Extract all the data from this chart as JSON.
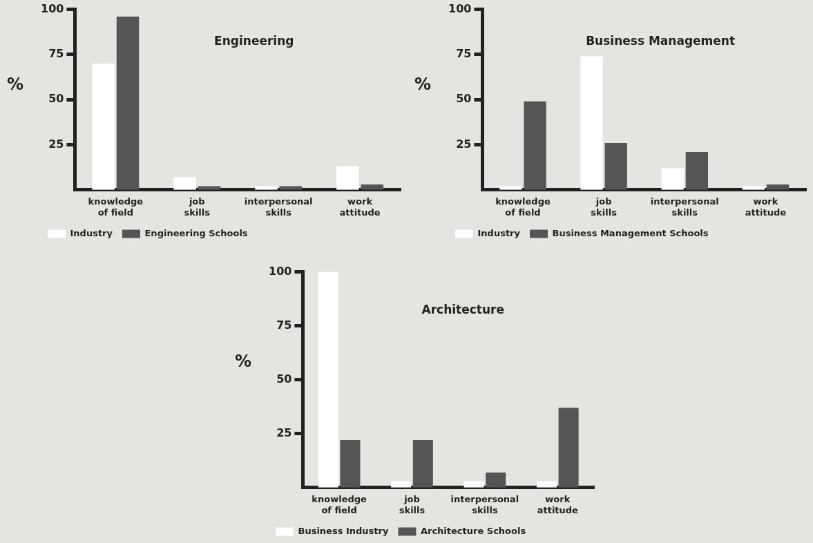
{
  "chart_data": [
    {
      "type": "bar",
      "title": "Engineering",
      "ylabel": "%",
      "categories": [
        "knowledge of field",
        "job skills",
        "interpersonal skills",
        "work attitude"
      ],
      "series": [
        {
          "name": "Industry",
          "color": "#ffffff",
          "values": [
            70,
            7,
            2,
            13
          ]
        },
        {
          "name": "Engineering Schools",
          "color": "#555555",
          "values": [
            96,
            2,
            2,
            3
          ]
        }
      ],
      "ylim": [
        0,
        100
      ],
      "yticks": [
        25,
        50,
        75,
        100
      ],
      "grid": false,
      "legend": "bottom"
    },
    {
      "type": "bar",
      "title": "Business Management",
      "ylabel": "%",
      "categories": [
        "knowledge of field",
        "job skills",
        "interpersonal skills",
        "work attitude"
      ],
      "series": [
        {
          "name": "Industry",
          "color": "#ffffff",
          "values": [
            2,
            74,
            12,
            2
          ]
        },
        {
          "name": "Business Management Schools",
          "color": "#555555",
          "values": [
            49,
            26,
            21,
            3
          ]
        }
      ],
      "ylim": [
        0,
        100
      ],
      "yticks": [
        25,
        50,
        75,
        100
      ],
      "grid": false,
      "legend": "bottom"
    },
    {
      "type": "bar",
      "title": "Architecture",
      "ylabel": "%",
      "categories": [
        "knowledge of field",
        "job skills",
        "interpersonal skills",
        "work attitude"
      ],
      "series": [
        {
          "name": "Business Industry",
          "color": "#ffffff",
          "values": [
            100,
            3,
            3,
            3
          ]
        },
        {
          "name": "Architecture Schools",
          "color": "#555555",
          "values": [
            22,
            22,
            7,
            37
          ]
        }
      ],
      "ylim": [
        0,
        100
      ],
      "yticks": [
        25,
        50,
        75,
        100
      ],
      "grid": false,
      "legend": "bottom"
    }
  ]
}
